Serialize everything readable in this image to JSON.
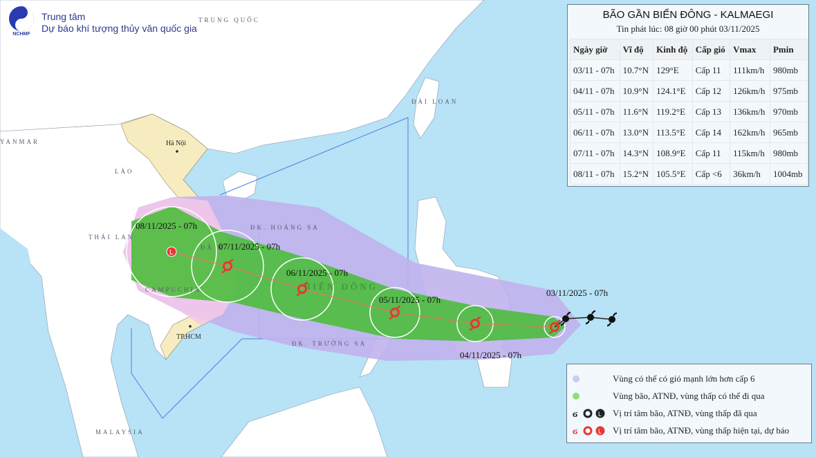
{
  "header": {
    "logo_text": "NCHMF",
    "org_line1": "Trung tâm",
    "org_line2": "Dự báo khí tượng thủy văn quốc gia"
  },
  "map_labels": {
    "china": "TRUNG QUỐC",
    "myanmar": "YANMAR",
    "hanoi": "Hà Nội",
    "laos": "LÀO",
    "thailand": "THÁI LAN",
    "cambodia": "CAMPUCHIA",
    "hcm": "TP.HCM",
    "hoang_sa": "ĐK. HOÀNG SA",
    "truong_sa": "ĐK. TRƯỜNG SA",
    "bien_dong": "BIỂN ĐÔNG",
    "taiwan": "ĐÀI LOAN",
    "malaysia": "MALAYSIA",
    "da_nang": "ĐÀ N"
  },
  "track": [
    {
      "label": "03/11/2025 - 07h",
      "kind": "current"
    },
    {
      "label": "04/11/2025 - 07h",
      "kind": "forecast"
    },
    {
      "label": "05/11/2025 - 07h",
      "kind": "forecast"
    },
    {
      "label": "06/11/2025 - 07h",
      "kind": "forecast"
    },
    {
      "label": "07/11/2025 - 07h",
      "kind": "forecast"
    },
    {
      "label": "08/11/2025 - 07h",
      "kind": "forecast-low"
    }
  ],
  "info": {
    "title": "BÃO GẦN BIỂN ĐÔNG - KALMAEGI",
    "issued": "Tin phát lúc: 08 giờ 00 phút 03/11/2025",
    "columns": [
      "Ngày giờ",
      "Vĩ độ",
      "Kinh độ",
      "Cấp gió",
      "Vmax",
      "Pmin"
    ],
    "rows": [
      [
        "03/11 - 07h",
        "10.7°N",
        "129°E",
        "Cấp 11",
        "111km/h",
        "980mb"
      ],
      [
        "04/11 - 07h",
        "10.9°N",
        "124.1°E",
        "Cấp 12",
        "126km/h",
        "975mb"
      ],
      [
        "05/11 - 07h",
        "11.6°N",
        "119.2°E",
        "Cấp 13",
        "136km/h",
        "970mb"
      ],
      [
        "06/11 - 07h",
        "13.0°N",
        "113.5°E",
        "Cấp 14",
        "162km/h",
        "965mb"
      ],
      [
        "07/11 - 07h",
        "14.3°N",
        "108.9°E",
        "Cấp 11",
        "115km/h",
        "980mb"
      ],
      [
        "08/11 - 07h",
        "15.2°N",
        "105.5°E",
        "Cấp <6",
        "36km/h",
        "1004mb"
      ]
    ]
  },
  "legend": [
    {
      "label": "Vùng có thể có gió mạnh lớn hơn cấp 6",
      "color": "#c9c3ec"
    },
    {
      "label": "Vùng bão, ATNĐ, vùng thấp có thể đi qua",
      "color": "#8ee07a"
    },
    {
      "label": "Vị trí tâm bão, ATNĐ, vùng thấp đã qua",
      "color": "#222222"
    },
    {
      "label": "Vị trí tâm bão, ATNĐ, vùng thấp hiện tại, dự báo",
      "color": "#e53935"
    }
  ],
  "colors": {
    "sea": "#b8e2f6",
    "land": "#ffffff",
    "vietnam": "#f7ecbf",
    "wind_zone": "#c2b4ee",
    "storm_zone": "#4cbc3c",
    "track": "#e53935"
  }
}
